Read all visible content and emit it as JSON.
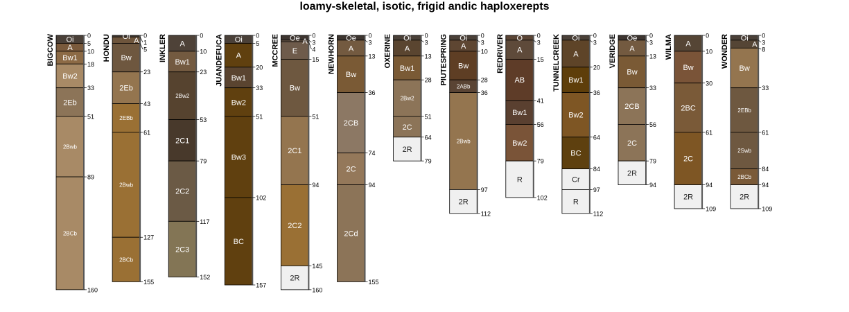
{
  "title": "loamy-skeletal, isotic, frigid andic haploxerepts",
  "profiles": [
    {
      "name": "BIGCOW",
      "horizons": [
        [
          "Oi",
          0,
          5,
          "#4a4038"
        ],
        [
          "A",
          5,
          10,
          "#7a5a3c"
        ],
        [
          "Bw1",
          10,
          18,
          "#8c6a45"
        ],
        [
          "Bw2",
          18,
          33,
          "#a88a66"
        ],
        [
          "2Eb",
          33,
          51,
          "#8c7458"
        ],
        [
          "2Bwb",
          51,
          89,
          "#a88a66"
        ],
        [
          "2BCb",
          89,
          160,
          "#a88a66"
        ]
      ]
    },
    {
      "name": "HONDU",
      "horizons": [
        [
          "Oi",
          0,
          1,
          "#4a4038"
        ],
        [
          "A",
          1,
          5,
          "#6e553c"
        ],
        [
          "Bw",
          5,
          23,
          "#6e573f"
        ],
        [
          "2Eb",
          23,
          43,
          "#94754f"
        ],
        [
          "2EBb",
          43,
          61,
          "#9a7034"
        ],
        [
          "2Bwb",
          61,
          127,
          "#9a7034"
        ],
        [
          "2BCb",
          127,
          155,
          "#9a7034"
        ]
      ]
    },
    {
      "name": "INKLER",
      "horizons": [
        [
          "A",
          0,
          10,
          "#4e4238"
        ],
        [
          "Bw1",
          10,
          23,
          "#735a40"
        ],
        [
          "2Bw2",
          23,
          53,
          "#56432f"
        ],
        [
          "2C1",
          53,
          79,
          "#48392b"
        ],
        [
          "2C2",
          79,
          117,
          "#6b5a45"
        ],
        [
          "2C3",
          117,
          152,
          "#837555"
        ]
      ]
    },
    {
      "name": "JUANDEFUCA",
      "horizons": [
        [
          "Oi",
          0,
          5,
          "#4a4038"
        ],
        [
          "A",
          5,
          20,
          "#60400f"
        ],
        [
          "Bw1",
          20,
          33,
          "#5a4430"
        ],
        [
          "Bw2",
          33,
          51,
          "#60400f"
        ],
        [
          "Bw3",
          51,
          102,
          "#60400f"
        ],
        [
          "BC",
          102,
          157,
          "#60400f"
        ]
      ]
    },
    {
      "name": "MCCREE",
      "horizons": [
        [
          "Oe",
          0,
          3,
          "#3d3530"
        ],
        [
          "A",
          3,
          4,
          "#6e5b4b"
        ],
        [
          "E",
          4,
          15,
          "#6e5b4b"
        ],
        [
          "Bw",
          15,
          51,
          "#6e5840"
        ],
        [
          "2C1",
          51,
          94,
          "#94754f"
        ],
        [
          "2C2",
          94,
          145,
          "#9a7034"
        ],
        [
          "2R",
          145,
          160,
          "#f0f0f0"
        ]
      ]
    },
    {
      "name": "NEWHORN",
      "horizons": [
        [
          "Oe",
          0,
          3,
          "#3d3530"
        ],
        [
          "A",
          3,
          13,
          "#735a40"
        ],
        [
          "Bw",
          13,
          36,
          "#7a5a35"
        ],
        [
          "2CB",
          36,
          74,
          "#8c7864"
        ],
        [
          "2C",
          74,
          94,
          "#94785a"
        ],
        [
          "2Cd",
          94,
          155,
          "#8c7458"
        ]
      ]
    },
    {
      "name": "OXERINE",
      "horizons": [
        [
          "Oi",
          0,
          3,
          "#4a4038"
        ],
        [
          "A",
          3,
          13,
          "#5a4530"
        ],
        [
          "Bw1",
          13,
          28,
          "#7a5a35"
        ],
        [
          "2Bw2",
          28,
          51,
          "#8c7458"
        ],
        [
          "2C",
          51,
          64,
          "#8c7458"
        ],
        [
          "2R",
          64,
          79,
          "#f0f0f0"
        ]
      ]
    },
    {
      "name": "PIUTESPRING",
      "horizons": [
        [
          "Oi",
          0,
          3,
          "#4a4038"
        ],
        [
          "A",
          3,
          10,
          "#5e4632"
        ],
        [
          "Bw",
          10,
          28,
          "#5e3e24"
        ],
        [
          "2ABb",
          28,
          36,
          "#5a4434"
        ],
        [
          "2Bwb",
          36,
          97,
          "#94754f"
        ],
        [
          "2R",
          97,
          112,
          "#f0f0f0"
        ]
      ]
    },
    {
      "name": "REDRIVER",
      "horizons": [
        [
          "O",
          0,
          3,
          "#5a4434"
        ],
        [
          "A",
          3,
          15,
          "#5e4a3a"
        ],
        [
          "AB",
          15,
          41,
          "#5e3c28"
        ],
        [
          "Bw1",
          41,
          56,
          "#5a4030"
        ],
        [
          "Bw2",
          56,
          79,
          "#7a5438"
        ],
        [
          "R",
          79,
          102,
          "#f0f0f0"
        ]
      ]
    },
    {
      "name": "TUNNELCREEK",
      "horizons": [
        [
          "Oi",
          0,
          3,
          "#4a4038"
        ],
        [
          "A",
          3,
          20,
          "#5e4428"
        ],
        [
          "Bw1",
          20,
          36,
          "#5e3e0a"
        ],
        [
          "Bw2",
          36,
          64,
          "#7e5624"
        ],
        [
          "BC",
          64,
          84,
          "#5e400f"
        ],
        [
          "Cr",
          84,
          97,
          "#f0f0f0"
        ],
        [
          "R",
          97,
          112,
          "#f0f0f0"
        ]
      ]
    },
    {
      "name": "VERIDGE",
      "horizons": [
        [
          "Oe",
          0,
          3,
          "#3d3530"
        ],
        [
          "A",
          3,
          13,
          "#735a40"
        ],
        [
          "Bw",
          13,
          33,
          "#7a5a35"
        ],
        [
          "2CB",
          33,
          56,
          "#8c7458"
        ],
        [
          "2C",
          56,
          79,
          "#8c7458"
        ],
        [
          "2R",
          79,
          94,
          "#f0f0f0"
        ]
      ]
    },
    {
      "name": "WILMA",
      "horizons": [
        [
          "A",
          0,
          10,
          "#554535"
        ],
        [
          "Bw",
          10,
          30,
          "#7a5438"
        ],
        [
          "2BC",
          30,
          61,
          "#7a5a38"
        ],
        [
          "2C",
          61,
          94,
          "#7e5624"
        ],
        [
          "2R",
          94,
          109,
          "#f0f0f0"
        ]
      ]
    },
    {
      "name": "WONDER",
      "horizons": [
        [
          "Oi",
          0,
          3,
          "#4a4038"
        ],
        [
          "A",
          3,
          8,
          "#554535"
        ],
        [
          "Bw",
          8,
          33,
          "#94754f"
        ],
        [
          "2EBb",
          33,
          61,
          "#6e5840"
        ],
        [
          "2Swb",
          61,
          84,
          "#6e5840"
        ],
        [
          "2BCb",
          84,
          94,
          "#7a5a38"
        ],
        [
          "2R",
          94,
          109,
          "#f0f0f0"
        ]
      ]
    }
  ]
}
